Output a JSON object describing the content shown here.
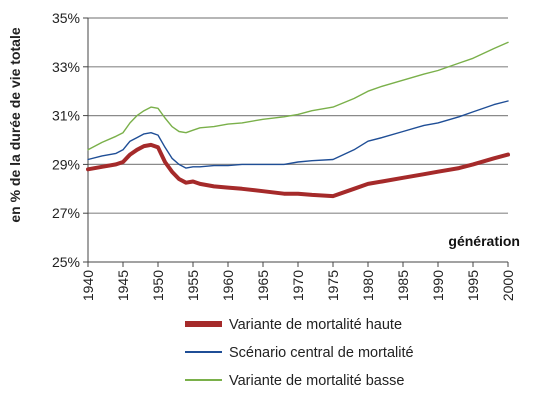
{
  "chart_data": {
    "type": "line",
    "xlabel": "génération",
    "ylabel": "en % de la durée de vie totale",
    "xlim": [
      1940,
      2000
    ],
    "ylim": [
      25,
      35
    ],
    "y_ticks": [
      "25%",
      "27%",
      "29%",
      "31%",
      "33%",
      "35%"
    ],
    "y_tick_values": [
      25,
      27,
      29,
      31,
      33,
      35
    ],
    "x_ticks": [
      "1940",
      "1945",
      "1950",
      "1955",
      "1960",
      "1965",
      "1970",
      "1975",
      "1980",
      "1985",
      "1990",
      "1995",
      "2000"
    ],
    "x_tick_values": [
      1940,
      1945,
      1950,
      1955,
      1960,
      1965,
      1970,
      1975,
      1980,
      1985,
      1990,
      1995,
      2000
    ],
    "grid": "horizontal",
    "legend_position": "bottom",
    "series": [
      {
        "name": "Variante de mortalité haute",
        "color": "#a52a2a",
        "width": 4,
        "x": [
          1940,
          1942,
          1944,
          1945,
          1946,
          1947,
          1948,
          1949,
          1950,
          1951,
          1952,
          1953,
          1954,
          1955,
          1956,
          1958,
          1960,
          1962,
          1965,
          1968,
          1970,
          1972,
          1975,
          1978,
          1980,
          1982,
          1985,
          1988,
          1990,
          1993,
          1995,
          1998,
          2000
        ],
        "y": [
          28.8,
          28.9,
          29.0,
          29.1,
          29.4,
          29.6,
          29.75,
          29.8,
          29.7,
          29.1,
          28.7,
          28.4,
          28.25,
          28.3,
          28.2,
          28.1,
          28.05,
          28.0,
          27.9,
          27.8,
          27.8,
          27.75,
          27.7,
          28.0,
          28.2,
          28.3,
          28.45,
          28.6,
          28.7,
          28.85,
          29.0,
          29.25,
          29.4
        ]
      },
      {
        "name": "Scénario central de mortalité",
        "color": "#1f4e96",
        "width": 1.4,
        "x": [
          1940,
          1942,
          1944,
          1945,
          1946,
          1947,
          1948,
          1949,
          1950,
          1951,
          1952,
          1953,
          1954,
          1955,
          1956,
          1958,
          1960,
          1962,
          1965,
          1968,
          1970,
          1972,
          1975,
          1978,
          1980,
          1982,
          1985,
          1988,
          1990,
          1993,
          1995,
          1998,
          2000
        ],
        "y": [
          29.2,
          29.35,
          29.45,
          29.6,
          29.95,
          30.1,
          30.25,
          30.3,
          30.2,
          29.7,
          29.25,
          29.0,
          28.85,
          28.9,
          28.9,
          28.95,
          28.95,
          29.0,
          29.0,
          29.0,
          29.1,
          29.15,
          29.2,
          29.6,
          29.95,
          30.1,
          30.35,
          30.6,
          30.7,
          30.95,
          31.15,
          31.45,
          31.6
        ]
      },
      {
        "name": "Variante de mortalité basse",
        "color": "#7ab04a",
        "width": 1.4,
        "x": [
          1940,
          1942,
          1944,
          1945,
          1946,
          1947,
          1948,
          1949,
          1950,
          1951,
          1952,
          1953,
          1954,
          1955,
          1956,
          1958,
          1960,
          1962,
          1965,
          1968,
          1970,
          1972,
          1975,
          1978,
          1980,
          1982,
          1985,
          1988,
          1990,
          1993,
          1995,
          1998,
          2000
        ],
        "y": [
          29.6,
          29.9,
          30.15,
          30.3,
          30.7,
          31.0,
          31.2,
          31.35,
          31.3,
          30.9,
          30.55,
          30.35,
          30.3,
          30.4,
          30.5,
          30.55,
          30.65,
          30.7,
          30.85,
          30.95,
          31.05,
          31.2,
          31.35,
          31.7,
          32.0,
          32.2,
          32.45,
          32.7,
          32.85,
          33.15,
          33.35,
          33.75,
          34.0
        ]
      }
    ]
  }
}
